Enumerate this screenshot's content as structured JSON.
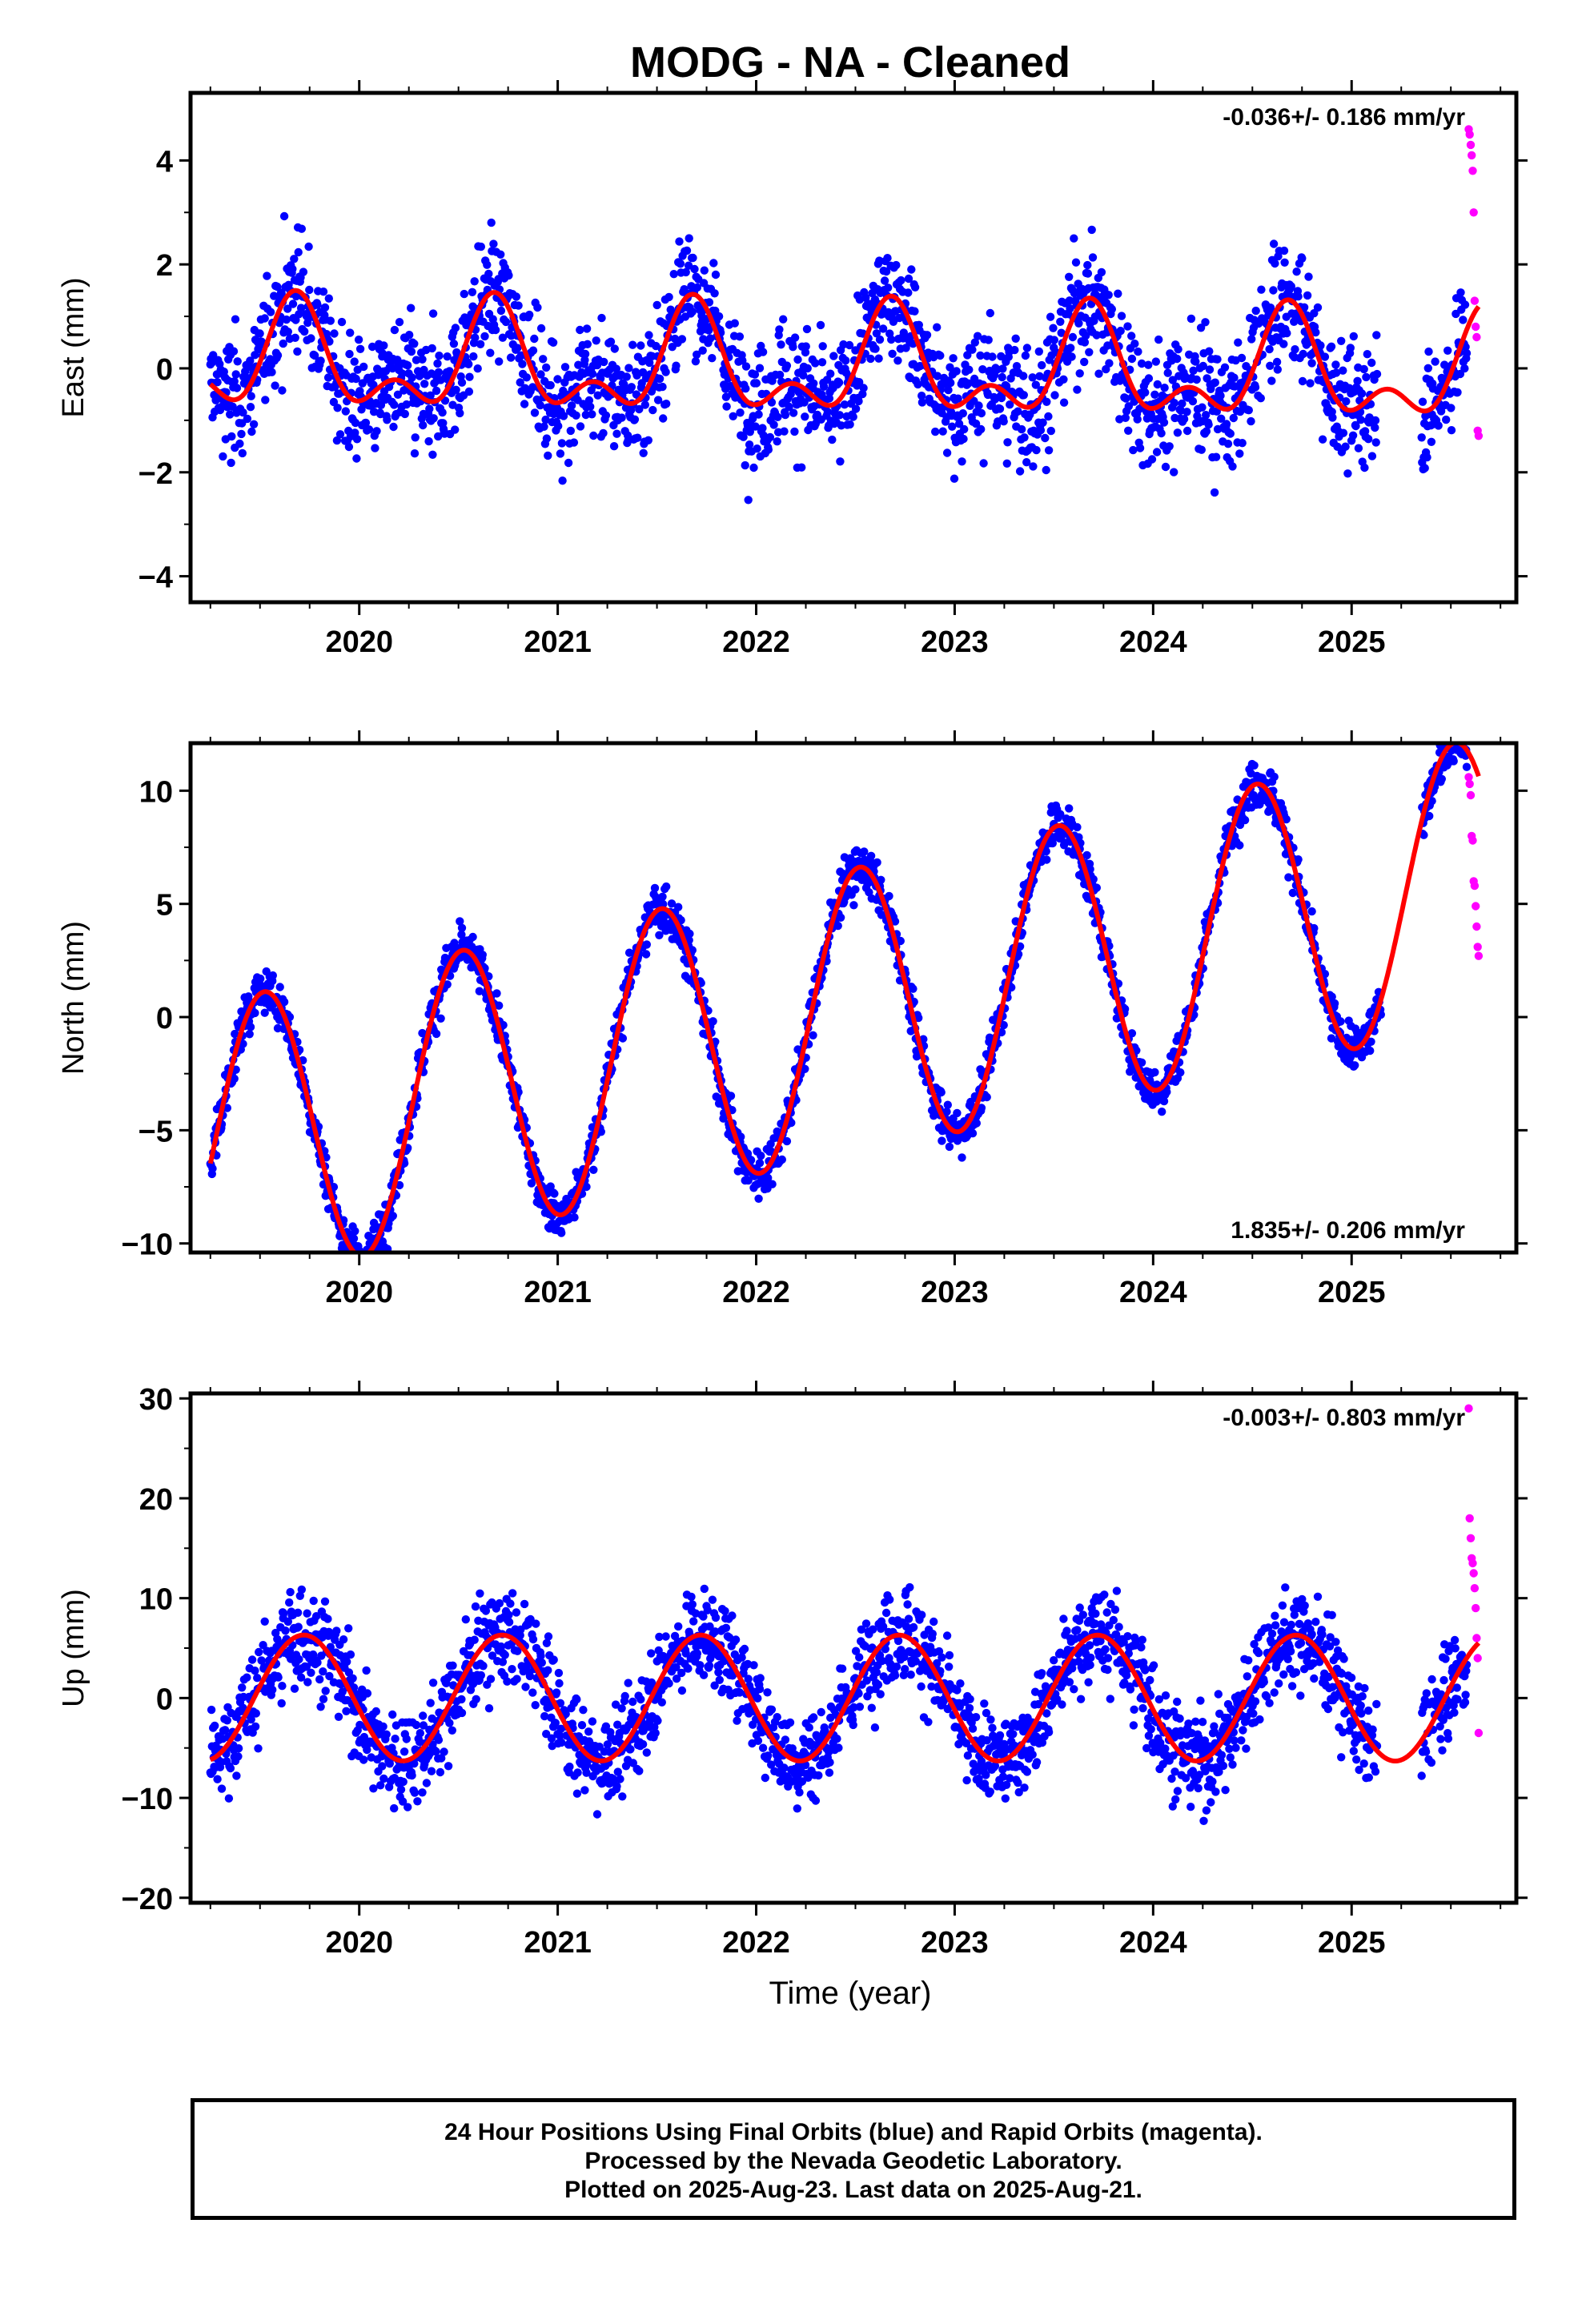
{
  "title": "MODG  - NA - Cleaned",
  "x_axis_label": "Time (year)",
  "footer": {
    "line1": "24 Hour Positions Using Final Orbits (blue) and Rapid Orbits (magenta).",
    "line2": "Processed by the Nevada Geodetic Laboratory.",
    "line3": "Plotted on 2025-Aug-23. Last data on 2025-Aug-21."
  },
  "colors": {
    "final": "#0000ff",
    "rapid": "#ff00ff",
    "model": "#ff0000"
  },
  "chart_data": [
    {
      "type": "scatter",
      "component": "east",
      "ylabel": "East (mm)",
      "rate_text": "-0.036+/- 0.186 mm/yr",
      "rate_position": "top-right",
      "xlim": [
        2019.15,
        2025.83
      ],
      "ylim": [
        -4.5,
        5.3
      ],
      "yticks": [
        -4,
        -2,
        0,
        2,
        4
      ],
      "xticks": [
        2020,
        2021,
        2022,
        2023,
        2024,
        2025
      ],
      "model": {
        "offset": 0.0,
        "rate": -0.036,
        "t0": 2022.4,
        "annual_amp": 0.85,
        "annual_peak": 0.68,
        "semiannual_amp": 0.55,
        "semiannual_peak": 0.68
      },
      "scatter_sigma": 0.95,
      "data_start": 2019.25,
      "final_end": 2025.58,
      "gaps": [
        [
          2025.13,
          2025.35
        ]
      ],
      "rapid_values": [
        4.6,
        4.5,
        4.3,
        4.1,
        3.8,
        3.0,
        1.3,
        0.8,
        0.6,
        -1.2,
        -1.3
      ],
      "rapid_start": 2025.59,
      "rapid_end": 2025.64
    },
    {
      "type": "scatter",
      "component": "north",
      "ylabel": "North (mm)",
      "rate_text": "1.835+/- 0.206 mm/yr",
      "rate_position": "bottom-right",
      "xlim": [
        2019.15,
        2025.83
      ],
      "ylim": [
        -10.4,
        12.1
      ],
      "yticks": [
        -10,
        -5,
        0,
        5,
        10
      ],
      "xticks": [
        2020,
        2021,
        2022,
        2023,
        2024,
        2025
      ],
      "model": {
        "offset": 0.1,
        "rate": 1.835,
        "t0": 2022.4,
        "annual_amp": 6.3,
        "annual_peak": 0.52,
        "semiannual_amp": 0.0,
        "semiannual_peak": 0.5
      },
      "scatter_sigma": 0.85,
      "data_start": 2019.25,
      "final_end": 2025.58,
      "gaps": [
        [
          2025.15,
          2025.35
        ]
      ],
      "rapid_values": [
        10.6,
        10.3,
        9.8,
        8.0,
        7.8,
        6.0,
        5.8,
        4.9,
        4.0,
        3.1,
        2.7
      ],
      "rapid_start": 2025.59,
      "rapid_end": 2025.64
    },
    {
      "type": "scatter",
      "component": "up",
      "ylabel": "Up (mm)",
      "rate_text": "-0.003+/- 0.803 mm/yr",
      "rate_position": "top-right",
      "xlim": [
        2019.15,
        2025.83
      ],
      "ylim": [
        -20.5,
        30.5
      ],
      "yticks": [
        -20,
        -10,
        0,
        10,
        20,
        30
      ],
      "xticks": [
        2020,
        2021,
        2022,
        2023,
        2024,
        2025
      ],
      "model": {
        "offset": 0.0,
        "rate": -0.003,
        "t0": 2022.4,
        "annual_amp": 6.3,
        "annual_peak": 0.72,
        "semiannual_amp": 0.0,
        "semiannual_peak": 0.5
      },
      "scatter_sigma": 3.8,
      "data_start": 2019.25,
      "final_end": 2025.58,
      "gaps": [
        [
          2025.13,
          2025.35
        ]
      ],
      "rapid_values": [
        29.0,
        18.0,
        16.0,
        14.0,
        13.5,
        12.5,
        11.0,
        9.0,
        6.0,
        4.0,
        -3.5
      ],
      "rapid_start": 2025.59,
      "rapid_end": 2025.64
    }
  ]
}
